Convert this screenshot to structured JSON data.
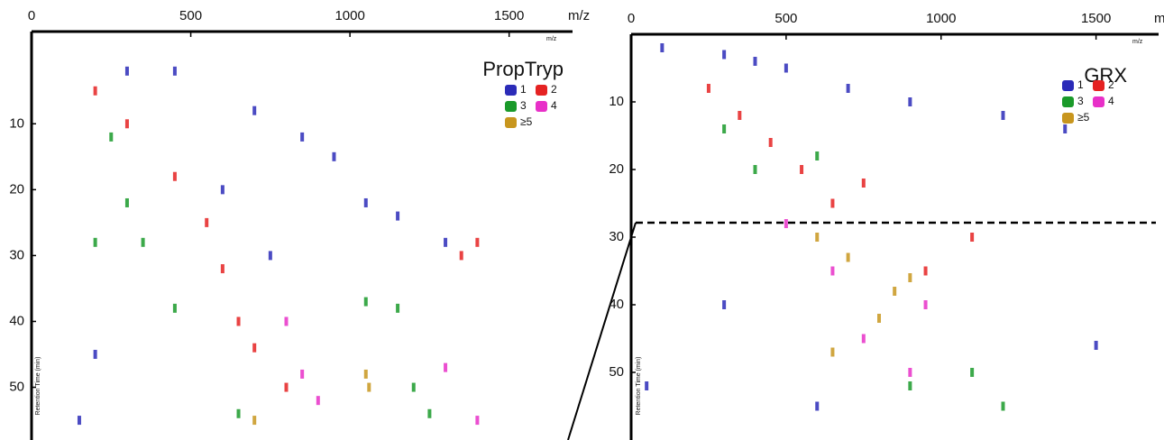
{
  "chart_data": [
    {
      "type": "scatter",
      "title": "PropTryp",
      "x_label": "m/z",
      "y_label": "Retention Time (min)",
      "xlim": [
        0,
        1600
      ],
      "xticks": [
        0,
        500,
        1000,
        1500
      ],
      "ylim": [
        -4,
        58
      ],
      "yticks": [
        10,
        20,
        30,
        40,
        50
      ],
      "series": [
        {
          "name": "1",
          "color": "#2b2bb8",
          "x": [
            300,
            450,
            700,
            850,
            950,
            1050,
            1150,
            600,
            750,
            1300,
            200,
            150
          ],
          "values": [
            2,
            2,
            8,
            12,
            15,
            22,
            24,
            20,
            30,
            28,
            45,
            55
          ]
        },
        {
          "name": "2",
          "color": "#e52222",
          "x": [
            200,
            300,
            450,
            550,
            600,
            650,
            700,
            800,
            1350,
            1400
          ],
          "values": [
            5,
            10,
            18,
            25,
            32,
            40,
            44,
            50,
            30,
            28
          ]
        },
        {
          "name": "3",
          "color": "#1a9a2a",
          "x": [
            250,
            300,
            350,
            450,
            1150,
            1050,
            1250,
            1200,
            650,
            200
          ],
          "values": [
            12,
            22,
            28,
            38,
            38,
            37,
            54,
            50,
            54,
            28
          ]
        },
        {
          "name": "4",
          "color": "#e830c8",
          "x": [
            800,
            850,
            1400,
            900,
            1300
          ],
          "values": [
            40,
            48,
            55,
            52,
            47
          ]
        },
        {
          "name": "≥5",
          "color": "#c8961e",
          "x": [
            1050,
            1060,
            700
          ],
          "values": [
            48,
            50,
            55
          ]
        }
      ]
    },
    {
      "type": "scatter",
      "title": "GRX",
      "x_label": "m/z",
      "y_label": "Retention Time (min)",
      "xlim": [
        0,
        1600
      ],
      "xticks": [
        0,
        500,
        1000,
        1500
      ],
      "ylim": [
        0,
        60
      ],
      "yticks": [
        10,
        20,
        30,
        40,
        50
      ],
      "series": [
        {
          "name": "1",
          "color": "#2b2bb8",
          "x": [
            100,
            300,
            400,
            500,
            700,
            900,
            1200,
            1400,
            50,
            300,
            600,
            1500
          ],
          "values": [
            2,
            3,
            4,
            5,
            8,
            10,
            12,
            14,
            52,
            40,
            55,
            46
          ]
        },
        {
          "name": "2",
          "color": "#e52222",
          "x": [
            250,
            350,
            450,
            550,
            650,
            750,
            950,
            1100
          ],
          "values": [
            8,
            12,
            16,
            20,
            25,
            22,
            35,
            30
          ]
        },
        {
          "name": "3",
          "color": "#1a9a2a",
          "x": [
            300,
            400,
            600,
            1100,
            1200,
            900
          ],
          "values": [
            14,
            20,
            18,
            50,
            55,
            52
          ]
        },
        {
          "name": "4",
          "color": "#e830c8",
          "x": [
            500,
            650,
            750,
            900,
            950
          ],
          "values": [
            28,
            35,
            45,
            50,
            40
          ]
        },
        {
          "name": "≥5",
          "color": "#c8961e",
          "x": [
            600,
            700,
            850,
            650,
            800,
            900
          ],
          "values": [
            30,
            33,
            38,
            47,
            42,
            36
          ]
        }
      ]
    }
  ]
}
